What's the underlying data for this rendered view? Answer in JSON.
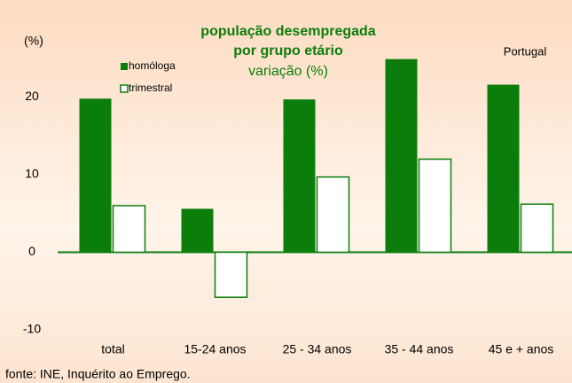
{
  "chart_data": {
    "type": "bar",
    "title": [
      "população desempregada",
      "por grupo etário"
    ],
    "subtitle": "variação (%)",
    "y_label": "(%)",
    "annotation": "Portugal",
    "source": "fonte: INE, Inquérito ao Emprego.",
    "categories": [
      "total",
      "15-24 anos",
      "25 - 34 anos",
      "35 - 44 anos",
      "45 e + anos"
    ],
    "series": [
      {
        "name": "homóloga",
        "color": "#0b7d0b",
        "filled": true,
        "values": [
          19.8,
          5.6,
          19.7,
          24.9,
          21.6
        ]
      },
      {
        "name": "trimestral",
        "color": "#0b7d0b",
        "filled": false,
        "values": [
          6.0,
          -5.8,
          9.7,
          12.0,
          6.2
        ]
      }
    ],
    "ylim": [
      -10,
      30
    ],
    "yticks": [
      -10,
      0,
      10,
      20
    ]
  }
}
